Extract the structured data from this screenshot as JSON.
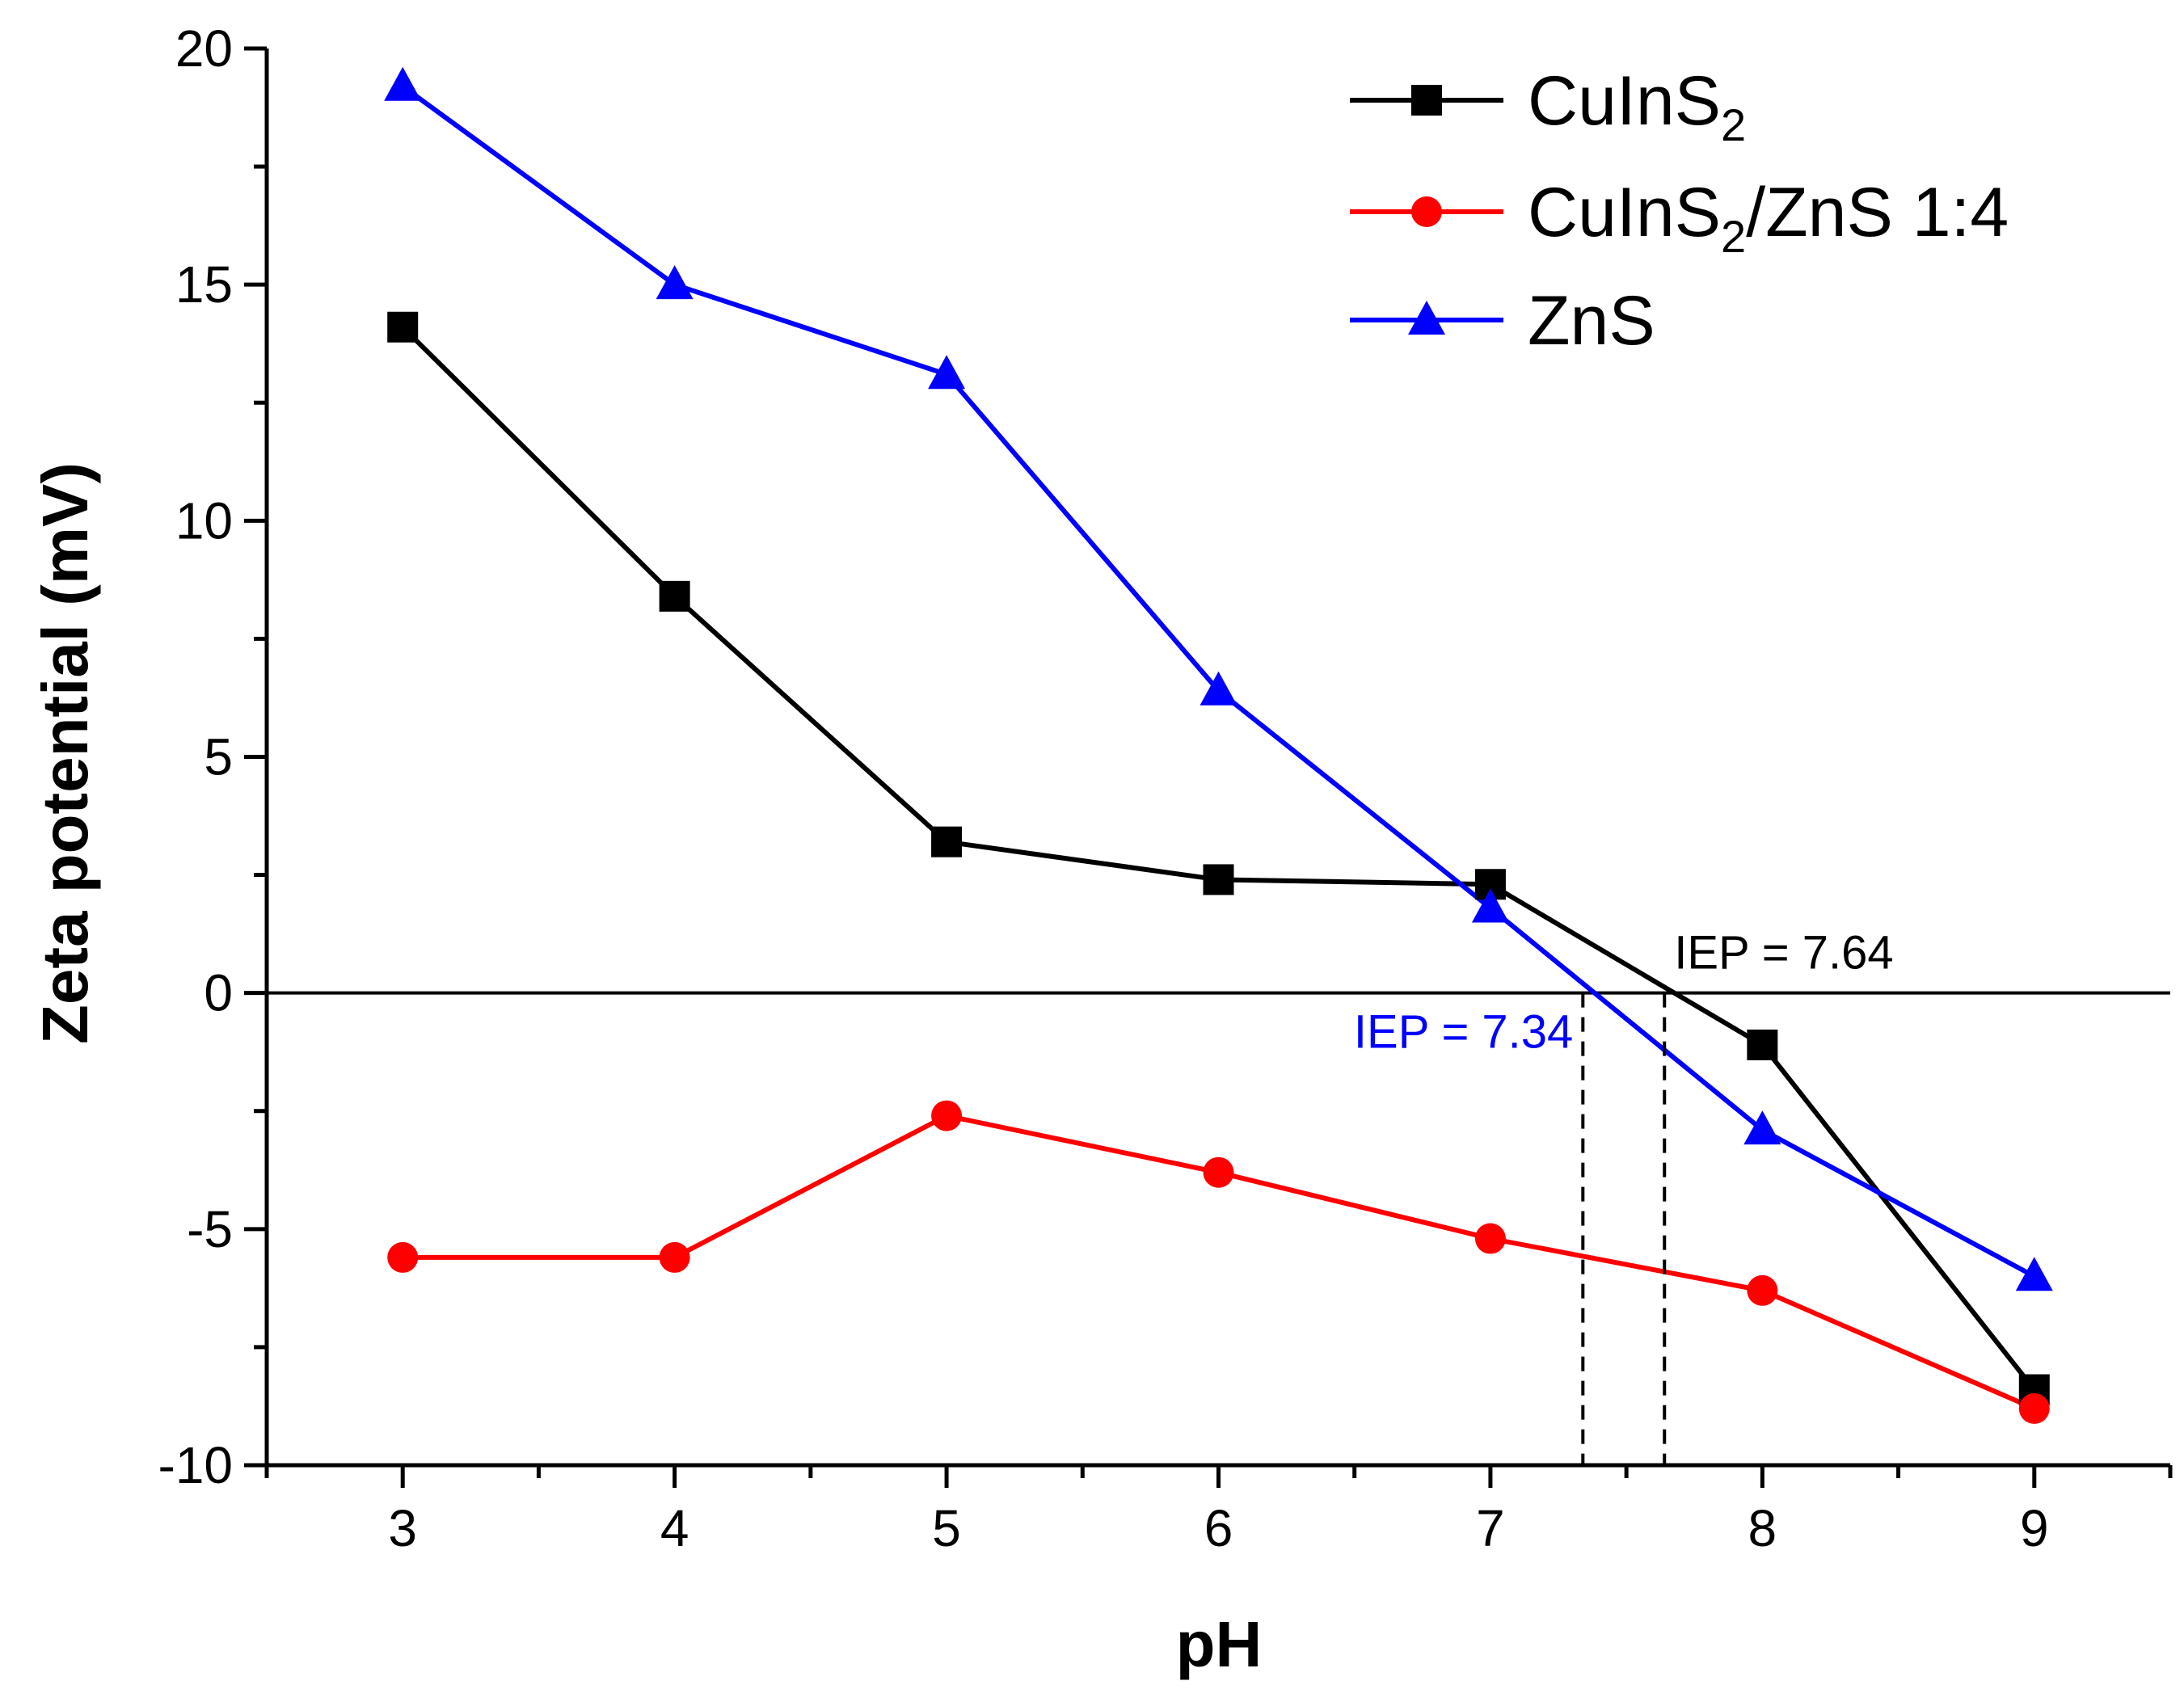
{
  "chart_data": {
    "type": "line",
    "title": "",
    "xlabel": "pH",
    "ylabel": "Zeta potential (mV)",
    "xlim": [
      2.5,
      9.5
    ],
    "ylim": [
      -10,
      20
    ],
    "x_ticks": [
      3,
      4,
      5,
      6,
      7,
      8,
      9
    ],
    "x_tick_labels": [
      "3",
      "4",
      "5",
      "6",
      "7",
      "8",
      "9"
    ],
    "y_ticks": [
      -10,
      -5,
      0,
      5,
      10,
      15,
      20
    ],
    "y_tick_labels": [
      "-10",
      "-5",
      "0",
      "5",
      "10",
      "15",
      "20"
    ],
    "legend_position": "top-right",
    "x": [
      3,
      4,
      5,
      6,
      7,
      8,
      9
    ],
    "series": [
      {
        "name": "CuInS2",
        "legend_main": "CuInS",
        "legend_sub": "2",
        "legend_rest": "",
        "color": "#000000",
        "marker": "square",
        "values": [
          14.1,
          8.4,
          3.2,
          2.4,
          2.3,
          -1.1,
          -8.4
        ]
      },
      {
        "name": "CuInS2/ZnS 1:4",
        "legend_main": "CuInS",
        "legend_sub": "2",
        "legend_rest": "/ZnS 1:4",
        "color": "#ff0000",
        "marker": "circle",
        "values": [
          -5.6,
          -5.6,
          -2.6,
          -3.8,
          -5.2,
          -6.3,
          -8.8
        ]
      },
      {
        "name": "ZnS",
        "legend_main": "ZnS",
        "legend_sub": "",
        "legend_rest": "",
        "color": "#0000ff",
        "marker": "triangle",
        "values": [
          19.2,
          15.0,
          13.1,
          6.4,
          1.8,
          -2.9,
          -6.0
        ]
      }
    ],
    "zero_line": 0,
    "annotations": [
      {
        "text": "IEP = 7.64",
        "x": 7.64,
        "color": "#000000"
      },
      {
        "text": "IEP = 7.34",
        "x": 7.34,
        "color": "#0000ff"
      }
    ]
  }
}
